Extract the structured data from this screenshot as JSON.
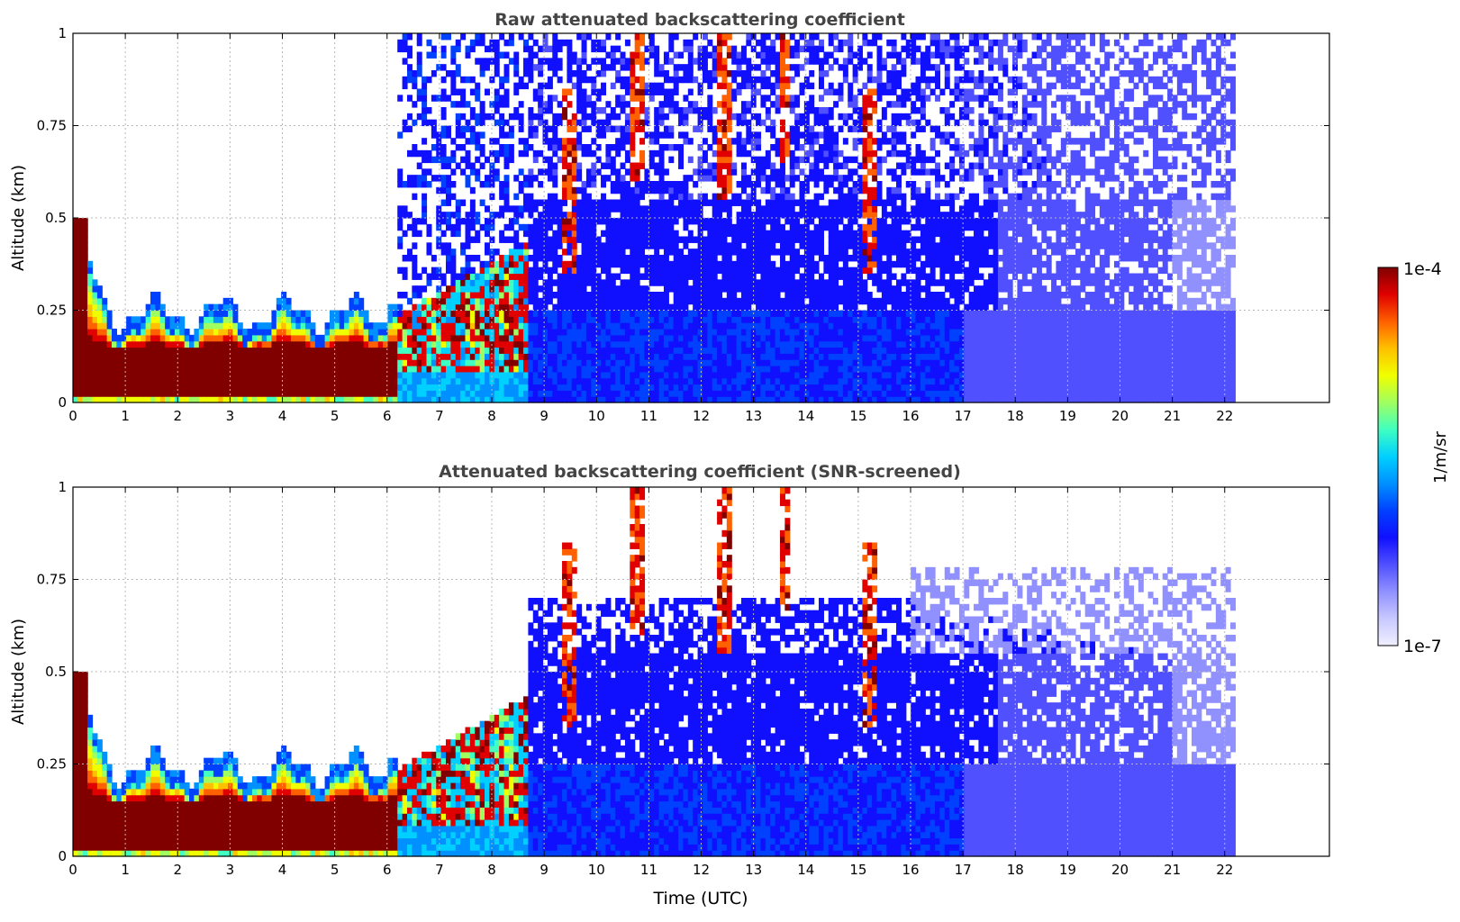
{
  "figure": {
    "xlabel": "Time (UTC)",
    "colorbar": {
      "max_label": "1e-4",
      "min_label": "1e-7",
      "unit_label": "1/m/sr",
      "colors": [
        "#f0f0ff",
        "#c8c8ff",
        "#9090ff",
        "#5050ff",
        "#1010ff",
        "#0040ff",
        "#0090ff",
        "#00d0ff",
        "#40ffc0",
        "#a0ff60",
        "#f0ff00",
        "#ffc000",
        "#ff6000",
        "#e00000",
        "#800000"
      ]
    }
  },
  "chart_data": [
    {
      "type": "heatmap",
      "title": "Raw attenuated backscattering coefficient",
      "xlabel": "",
      "ylabel": "Altitude (km)",
      "xlim": [
        0,
        24
      ],
      "ylim": [
        0,
        1
      ],
      "x_ticks": [
        "0",
        "1",
        "2",
        "3",
        "4",
        "5",
        "6",
        "7",
        "8",
        "9",
        "10",
        "11",
        "12",
        "13",
        "14",
        "15",
        "16",
        "17",
        "18",
        "19",
        "20",
        "21",
        "22"
      ],
      "y_ticks": [
        "0",
        "0.25",
        "0.5",
        "0.75",
        "1"
      ],
      "y_tick_values": [
        0,
        0.25,
        0.5,
        0.75,
        1
      ],
      "data_extent_hours": [
        0,
        22.2
      ],
      "grid": true,
      "colorscale": "log",
      "value_range": [
        "1e-7",
        "1e-4"
      ]
    },
    {
      "type": "heatmap",
      "title": "Attenuated backscattering coefficient (SNR-screened)",
      "xlabel": "Time (UTC)",
      "ylabel": "Altitude (km)",
      "xlim": [
        0,
        24
      ],
      "ylim": [
        0,
        1
      ],
      "x_ticks": [
        "0",
        "1",
        "2",
        "3",
        "4",
        "5",
        "6",
        "7",
        "8",
        "9",
        "10",
        "11",
        "12",
        "13",
        "14",
        "15",
        "16",
        "17",
        "18",
        "19",
        "20",
        "21",
        "22"
      ],
      "y_ticks": [
        "0",
        "0.25",
        "0.5",
        "0.75",
        "1"
      ],
      "y_tick_values": [
        0,
        0.25,
        0.5,
        0.75,
        1
      ],
      "data_extent_hours": [
        0,
        22.2
      ],
      "grid": true,
      "colorscale": "log",
      "value_range": [
        "1e-7",
        "1e-4"
      ]
    }
  ]
}
